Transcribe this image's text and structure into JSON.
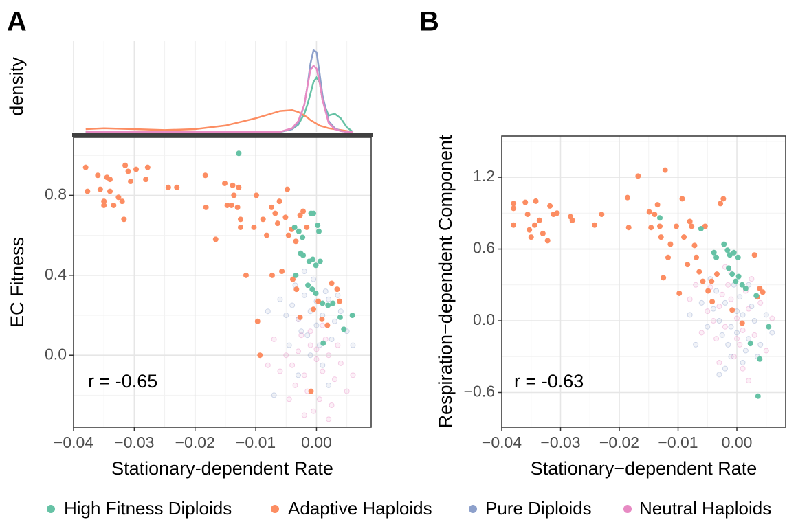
{
  "chart_data": [
    {
      "type": "density",
      "ylabel": "density",
      "x": [
        -0.038,
        -0.035,
        -0.03,
        -0.025,
        -0.02,
        -0.015,
        -0.01,
        -0.008,
        -0.006,
        -0.004,
        -0.003,
        -0.002,
        -0.0015,
        -0.001,
        -0.0005,
        0,
        0.0005,
        0.001,
        0.002,
        0.003,
        0.004,
        0.005,
        0.006
      ],
      "xlim": [
        -0.04,
        0.009
      ],
      "ylim": [
        0,
        1
      ],
      "xticks": [
        -0.04,
        -0.03,
        -0.02,
        -0.01,
        0
      ],
      "minor_grid": true,
      "series": [
        {
          "color": "#66c2a5",
          "values": [
            0,
            0,
            0,
            0,
            0,
            0,
            0,
            0,
            0,
            0.03,
            0.08,
            0.2,
            0.3,
            0.42,
            0.55,
            0.6,
            0.55,
            0.35,
            0.18,
            0.2,
            0.15,
            0.05,
            0
          ]
        },
        {
          "color": "#fc8d62",
          "values": [
            0.03,
            0.04,
            0.03,
            0.02,
            0.03,
            0.07,
            0.15,
            0.19,
            0.23,
            0.24,
            0.22,
            0.18,
            0.16,
            0.13,
            0.11,
            0.09,
            0.07,
            0.06,
            0.04,
            0.03,
            0.02,
            0.01,
            0
          ]
        },
        {
          "color": "#8da0cb",
          "values": [
            0,
            0,
            0,
            0,
            0,
            0,
            0,
            0,
            0,
            0.03,
            0.1,
            0.3,
            0.5,
            0.75,
            0.9,
            0.88,
            0.65,
            0.4,
            0.12,
            0.04,
            0.01,
            0,
            0
          ]
        },
        {
          "color": "#e78ac3",
          "values": [
            0,
            0,
            0,
            0,
            0,
            0,
            0,
            0,
            0,
            0.04,
            0.12,
            0.3,
            0.5,
            0.68,
            0.73,
            0.7,
            0.55,
            0.35,
            0.1,
            0.03,
            0.01,
            0,
            0
          ]
        }
      ]
    },
    {
      "type": "scatter",
      "panel": "A",
      "xlabel": "Stationary-dependent Rate",
      "ylabel": "EC Fitness",
      "annotation": "r = -0.65",
      "xlim": [
        -0.04,
        0.009
      ],
      "ylim": [
        -0.36,
        1.09
      ],
      "xticks": [
        {
          "value": -0.04,
          "label": "−0.04"
        },
        {
          "value": -0.03,
          "label": "−0.03"
        },
        {
          "value": -0.02,
          "label": "−0.02"
        },
        {
          "value": -0.01,
          "label": "−0.01"
        },
        {
          "value": 0,
          "label": "0.00"
        }
      ],
      "yticks": [
        {
          "value": 0,
          "label": "0.0"
        },
        0.4,
        0.8
      ],
      "grid": true,
      "minor_grid": true,
      "series": [
        {
          "name": "High Fitness Diploids",
          "color": "#66c2a5",
          "alpha": 1,
          "filled": true,
          "x": [
            -0.0128,
            -0.0036,
            -0.0029,
            -0.0023,
            -0.0009,
            -0.0005,
            0.0002,
            0.0004,
            -0.0034,
            -0.0026,
            -0.0022,
            -0.0012,
            -0.0006,
            -0.0001,
            0.0006,
            -0.0014,
            -0.0007,
            -0.0001,
            0.001,
            0.0019,
            0.0027,
            0.0045,
            0.0059,
            0.0039,
            0.0011
          ],
          "y": [
            1.01,
            0.64,
            0.62,
            0.59,
            0.71,
            0.71,
            0.65,
            0.62,
            0.4,
            0.51,
            0.5,
            0.47,
            0.48,
            0.45,
            0.47,
            0.35,
            0.33,
            0.31,
            0.26,
            0.25,
            0.26,
            0.13,
            0.2,
            0.19,
            0.06
          ]
        },
        {
          "name": "Adaptive Haploids",
          "color": "#fc8d62",
          "alpha": 1,
          "filled": true,
          "x": [
            -0.038,
            -0.0377,
            -0.036,
            -0.0356,
            -0.035,
            -0.035,
            -0.0345,
            -0.034,
            -0.034,
            -0.0334,
            -0.0326,
            -0.032,
            -0.0317,
            -0.0315,
            -0.031,
            -0.0306,
            -0.0297,
            -0.0281,
            -0.0278,
            -0.0244,
            -0.023,
            -0.0183,
            -0.0182,
            -0.0166,
            -0.0151,
            -0.0147,
            -0.014,
            -0.0138,
            -0.0136,
            -0.013,
            -0.0128,
            -0.0125,
            -0.0125,
            -0.0116,
            -0.0103,
            -0.0099,
            -0.0097,
            -0.0093,
            -0.0088,
            -0.0082,
            -0.0074,
            -0.0073,
            -0.0068,
            -0.0064,
            -0.0061,
            -0.0057,
            -0.0051,
            -0.0048,
            -0.0046,
            -0.0041,
            -0.0034,
            -0.0027,
            -0.0022,
            -0.0016,
            -0.0009,
            -0.0005,
            0.0003,
            0.0009,
            0.0018,
            0.0025,
            0.0034,
            0.0038,
            -0.0039,
            -0.0033,
            -0.0027
          ],
          "y": [
            0.94,
            0.82,
            0.9,
            0.83,
            0.77,
            0.75,
            0.89,
            0.88,
            0.82,
            0.75,
            0.79,
            0.77,
            0.68,
            0.95,
            0.92,
            0.87,
            0.93,
            0.88,
            0.94,
            0.84,
            0.84,
            0.9,
            0.74,
            0.58,
            0.86,
            0.75,
            0.75,
            0.85,
            0.8,
            0.74,
            0.84,
            0.68,
            0.64,
            0.4,
            0.64,
            0.8,
            0.17,
            0,
            0.68,
            0.6,
            0.74,
            0.4,
            0.71,
            0.66,
            0.77,
            0.42,
            0.69,
            0.83,
            0.6,
            0.63,
            0.57,
            0.7,
            0.72,
            0.64,
            -0.18,
            0.23,
            0.27,
            0.18,
            0.15,
            0.36,
            0.33,
            0.27,
            0.38,
            0.33,
            0.19
          ]
        },
        {
          "name": "Pure Diploids",
          "color": "#8da0cb",
          "alpha": 0.25,
          "filled": false,
          "x": [
            -0.004,
            -0.003,
            -0.002,
            -0.001,
            0,
            0.001,
            0.002,
            -0.0015,
            0.0005,
            -0.0025,
            0.003,
            0.0015,
            -0.0035,
            -0.0005,
            0.0025,
            -0.005,
            0.004,
            -0.001,
            0.001,
            -0.006,
            0.005,
            -0.002,
            0,
            -0.0045,
            0.0035,
            -0.008,
            0.006,
            -0.003,
            0.002,
            -0.007
          ],
          "y": [
            0.25,
            0.18,
            0.3,
            0.22,
            0.15,
            0.2,
            0.28,
            0.1,
            0.05,
            0.12,
            0.17,
            0.32,
            0.35,
            0.38,
            0.08,
            0.2,
            0.22,
            0,
            -0.05,
            0.28,
            0.12,
            0.42,
            0.27,
            0.05,
            0.3,
            0.22,
            0.05,
            -0.1,
            -0.15,
            -0.2
          ]
        },
        {
          "name": "Neutral Haploids",
          "color": "#e78ac3",
          "alpha": 0.25,
          "filled": false,
          "x": [
            -0.004,
            -0.003,
            -0.002,
            -0.001,
            0,
            0.001,
            0.002,
            -0.0015,
            0.0005,
            -0.0025,
            0.003,
            0.0015,
            -0.0035,
            -0.0005,
            0.0025,
            -0.005,
            0.004,
            -0.001,
            0.001,
            -0.006,
            0.005,
            -0.002,
            0,
            -0.0045,
            0.0035,
            -0.008,
            0.006,
            -0.003,
            0.002,
            -0.007
          ],
          "y": [
            -0.05,
            0.02,
            -0.1,
            0.05,
            -0.02,
            -0.08,
            0,
            -0.18,
            -0.22,
            0.1,
            -0.12,
            0.08,
            -0.15,
            -0.28,
            -0.25,
            0,
            -0.04,
            0.12,
            0.15,
            -0.08,
            -0.18,
            -0.3,
            0.03,
            -0.22,
            0.05,
            -0.05,
            -0.1,
            0.18,
            -0.32,
            0.08
          ]
        }
      ]
    },
    {
      "type": "scatter",
      "panel": "B",
      "xlabel": "Stationary−dependent Rate",
      "ylabel": "Respiration−dependent Component",
      "annotation": "r = -0.63",
      "xlim": [
        -0.04,
        0.0083
      ],
      "ylim": [
        -0.89,
        1.545
      ],
      "xticks": [
        {
          "value": -0.04,
          "label": "−0.04"
        },
        {
          "value": -0.03,
          "label": "−0.03"
        },
        {
          "value": -0.02,
          "label": "−0.02"
        },
        {
          "value": -0.01,
          "label": "−0.01"
        },
        {
          "value": 0,
          "label": "0.00"
        }
      ],
      "yticks": [
        {
          "value": -0.6,
          "label": "−0.6"
        },
        {
          "value": 0,
          "label": "0.0"
        },
        0.6,
        1.2
      ],
      "grid": true,
      "minor_grid": true,
      "series": [
        {
          "color": "#66c2a5",
          "alpha": 1,
          "filled": true,
          "x": [
            -0.0131,
            -0.0061,
            -0.0039,
            -0.0035,
            -0.0022,
            -0.0016,
            -0.0012,
            -0.0005,
            0.0002,
            -0.0014,
            -0.0008,
            -0.0002,
            0.0003,
            0.0009,
            0.0015,
            0.0033,
            0.0039,
            0.0036,
            0.0054,
            0.0023
          ],
          "y": [
            0.86,
            0.77,
            0.57,
            0.53,
            0.64,
            0.59,
            0.55,
            0.57,
            0.53,
            0.44,
            0.39,
            0.33,
            0.37,
            0.3,
            0.27,
            0.21,
            -0.32,
            -0.63,
            -0.05,
            -0.19
          ]
        },
        {
          "color": "#fc8d62",
          "alpha": 1,
          "filled": true,
          "x": [
            -0.038,
            -0.038,
            -0.038,
            -0.036,
            -0.0356,
            -0.0353,
            -0.035,
            -0.0344,
            -0.0342,
            -0.0336,
            -0.033,
            -0.0322,
            -0.0318,
            -0.0312,
            -0.0306,
            -0.0283,
            -0.028,
            -0.0242,
            -0.023,
            -0.0186,
            -0.0184,
            -0.0168,
            -0.0149,
            -0.0146,
            -0.014,
            -0.0135,
            -0.0131,
            -0.0129,
            -0.0125,
            -0.0122,
            -0.0117,
            -0.0113,
            -0.0103,
            -0.0098,
            -0.0093,
            -0.009,
            -0.0084,
            -0.008,
            -0.0077,
            -0.0072,
            -0.0069,
            -0.0064,
            -0.0058,
            -0.0054,
            -0.0049,
            -0.0042,
            -0.0034,
            -0.0028,
            -0.0023,
            -0.0008,
            0.0009,
            0.003,
            0.0039,
            0.0044,
            0.0035,
            -0.0043
          ],
          "y": [
            0.98,
            0.8,
            0.94,
            0.99,
            0.89,
            0.76,
            0.7,
            0.8,
            1,
            0.84,
            0.73,
            0.67,
            0.96,
            0.89,
            0.9,
            0.87,
            0.84,
            0.8,
            0.89,
            1.03,
            0.78,
            1.21,
            0.91,
            0.78,
            0.89,
            0.97,
            0.79,
            0.7,
            0.36,
            1.26,
            0.53,
            0.64,
            0.79,
            0.23,
            1.02,
            0.7,
            0.47,
            0.83,
            0.79,
            0.63,
            0.53,
            0.41,
            0.33,
            0.79,
            0.25,
            0.16,
            0.39,
            0.98,
            1.02,
            0.09,
            -0.02,
            0.55,
            0.27,
            0.24,
            0.2,
            0.33
          ]
        },
        {
          "color": "#8da0cb",
          "alpha": 0.25,
          "filled": false,
          "x": [
            -0.004,
            -0.003,
            -0.002,
            -0.001,
            0,
            0.001,
            0.002,
            -0.0015,
            0.0005,
            -0.0025,
            0.003,
            0.0015,
            -0.0035,
            -0.0005,
            0.0025,
            -0.005,
            0.004,
            -0.001,
            0.001,
            -0.006,
            0.005,
            -0.002,
            0,
            -0.0045,
            0.0035,
            -0.008,
            0.006,
            -0.003,
            0.002,
            -0.007
          ],
          "y": [
            0.1,
            0,
            0.15,
            -0.05,
            -0.1,
            0.05,
            -0.15,
            -0.2,
            0.2,
            -0.12,
            0,
            -0.25,
            0.25,
            0.3,
            0.12,
            -0.05,
            -0.2,
            -0.3,
            -0.35,
            0.15,
            0.05,
            -0.4,
            0.08,
            0.35,
            -0.3,
            0.05,
            -0.1,
            -0.45,
            0.3,
            -0.2
          ]
        },
        {
          "color": "#e78ac3",
          "alpha": 0.25,
          "filled": false,
          "x": [
            -0.004,
            -0.003,
            -0.002,
            -0.001,
            0,
            0.001,
            0.002,
            -0.0015,
            0.0005,
            -0.0025,
            0.003,
            0.0015,
            -0.0035,
            -0.0005,
            0.0025,
            -0.005,
            0.004,
            -0.001,
            0.001,
            -0.006,
            0.005,
            -0.002,
            0,
            -0.0045,
            0.0035,
            -0.008,
            0.006,
            -0.003,
            0.002,
            -0.007
          ],
          "y": [
            0,
            0.12,
            -0.05,
            0.18,
            0.02,
            -0.08,
            0.1,
            0.3,
            -0.2,
            0.22,
            -0.12,
            0.25,
            -0.15,
            -0.3,
            0.35,
            0.08,
            0.15,
            0.4,
            -0.4,
            -0.1,
            -0.25,
            0.45,
            -0.15,
            0.28,
            0.2,
            0.18,
            0.02,
            -0.35,
            -0.5,
            0.3
          ]
        }
      ]
    }
  ]
}
